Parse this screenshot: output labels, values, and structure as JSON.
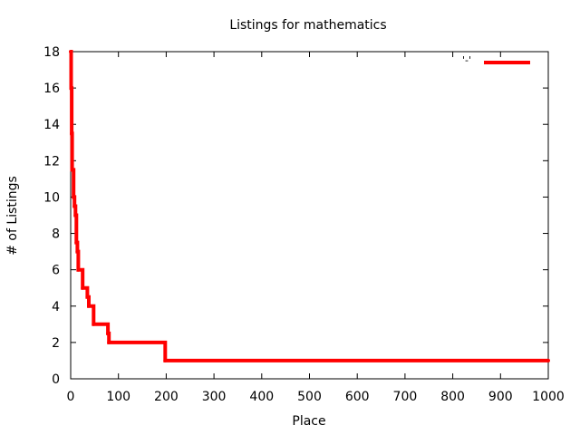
{
  "chart_data": {
    "type": "line",
    "title": "Listings for mathematics",
    "xlabel": "Place",
    "ylabel": "# of Listings",
    "xlim": [
      0,
      1000
    ],
    "ylim": [
      0,
      18
    ],
    "x_ticks": [
      0,
      100,
      200,
      300,
      400,
      500,
      600,
      700,
      800,
      900,
      1000
    ],
    "y_ticks": [
      0,
      2,
      4,
      6,
      8,
      10,
      12,
      14,
      16,
      18
    ],
    "grid": false,
    "legend_position": "top-right",
    "series": [
      {
        "name": "'-'",
        "color": "#ff0000",
        "step": true,
        "points": [
          [
            0,
            18
          ],
          [
            1,
            16
          ],
          [
            2,
            13.5
          ],
          [
            3,
            11.5
          ],
          [
            6,
            10
          ],
          [
            8,
            9.5
          ],
          [
            10,
            9
          ],
          [
            12,
            7.5
          ],
          [
            14,
            7
          ],
          [
            16,
            6
          ],
          [
            25,
            5
          ],
          [
            35,
            4.5
          ],
          [
            38,
            4
          ],
          [
            48,
            3
          ],
          [
            78,
            2.5
          ],
          [
            80,
            2
          ],
          [
            198,
            1
          ],
          [
            1000,
            1
          ]
        ]
      }
    ]
  }
}
